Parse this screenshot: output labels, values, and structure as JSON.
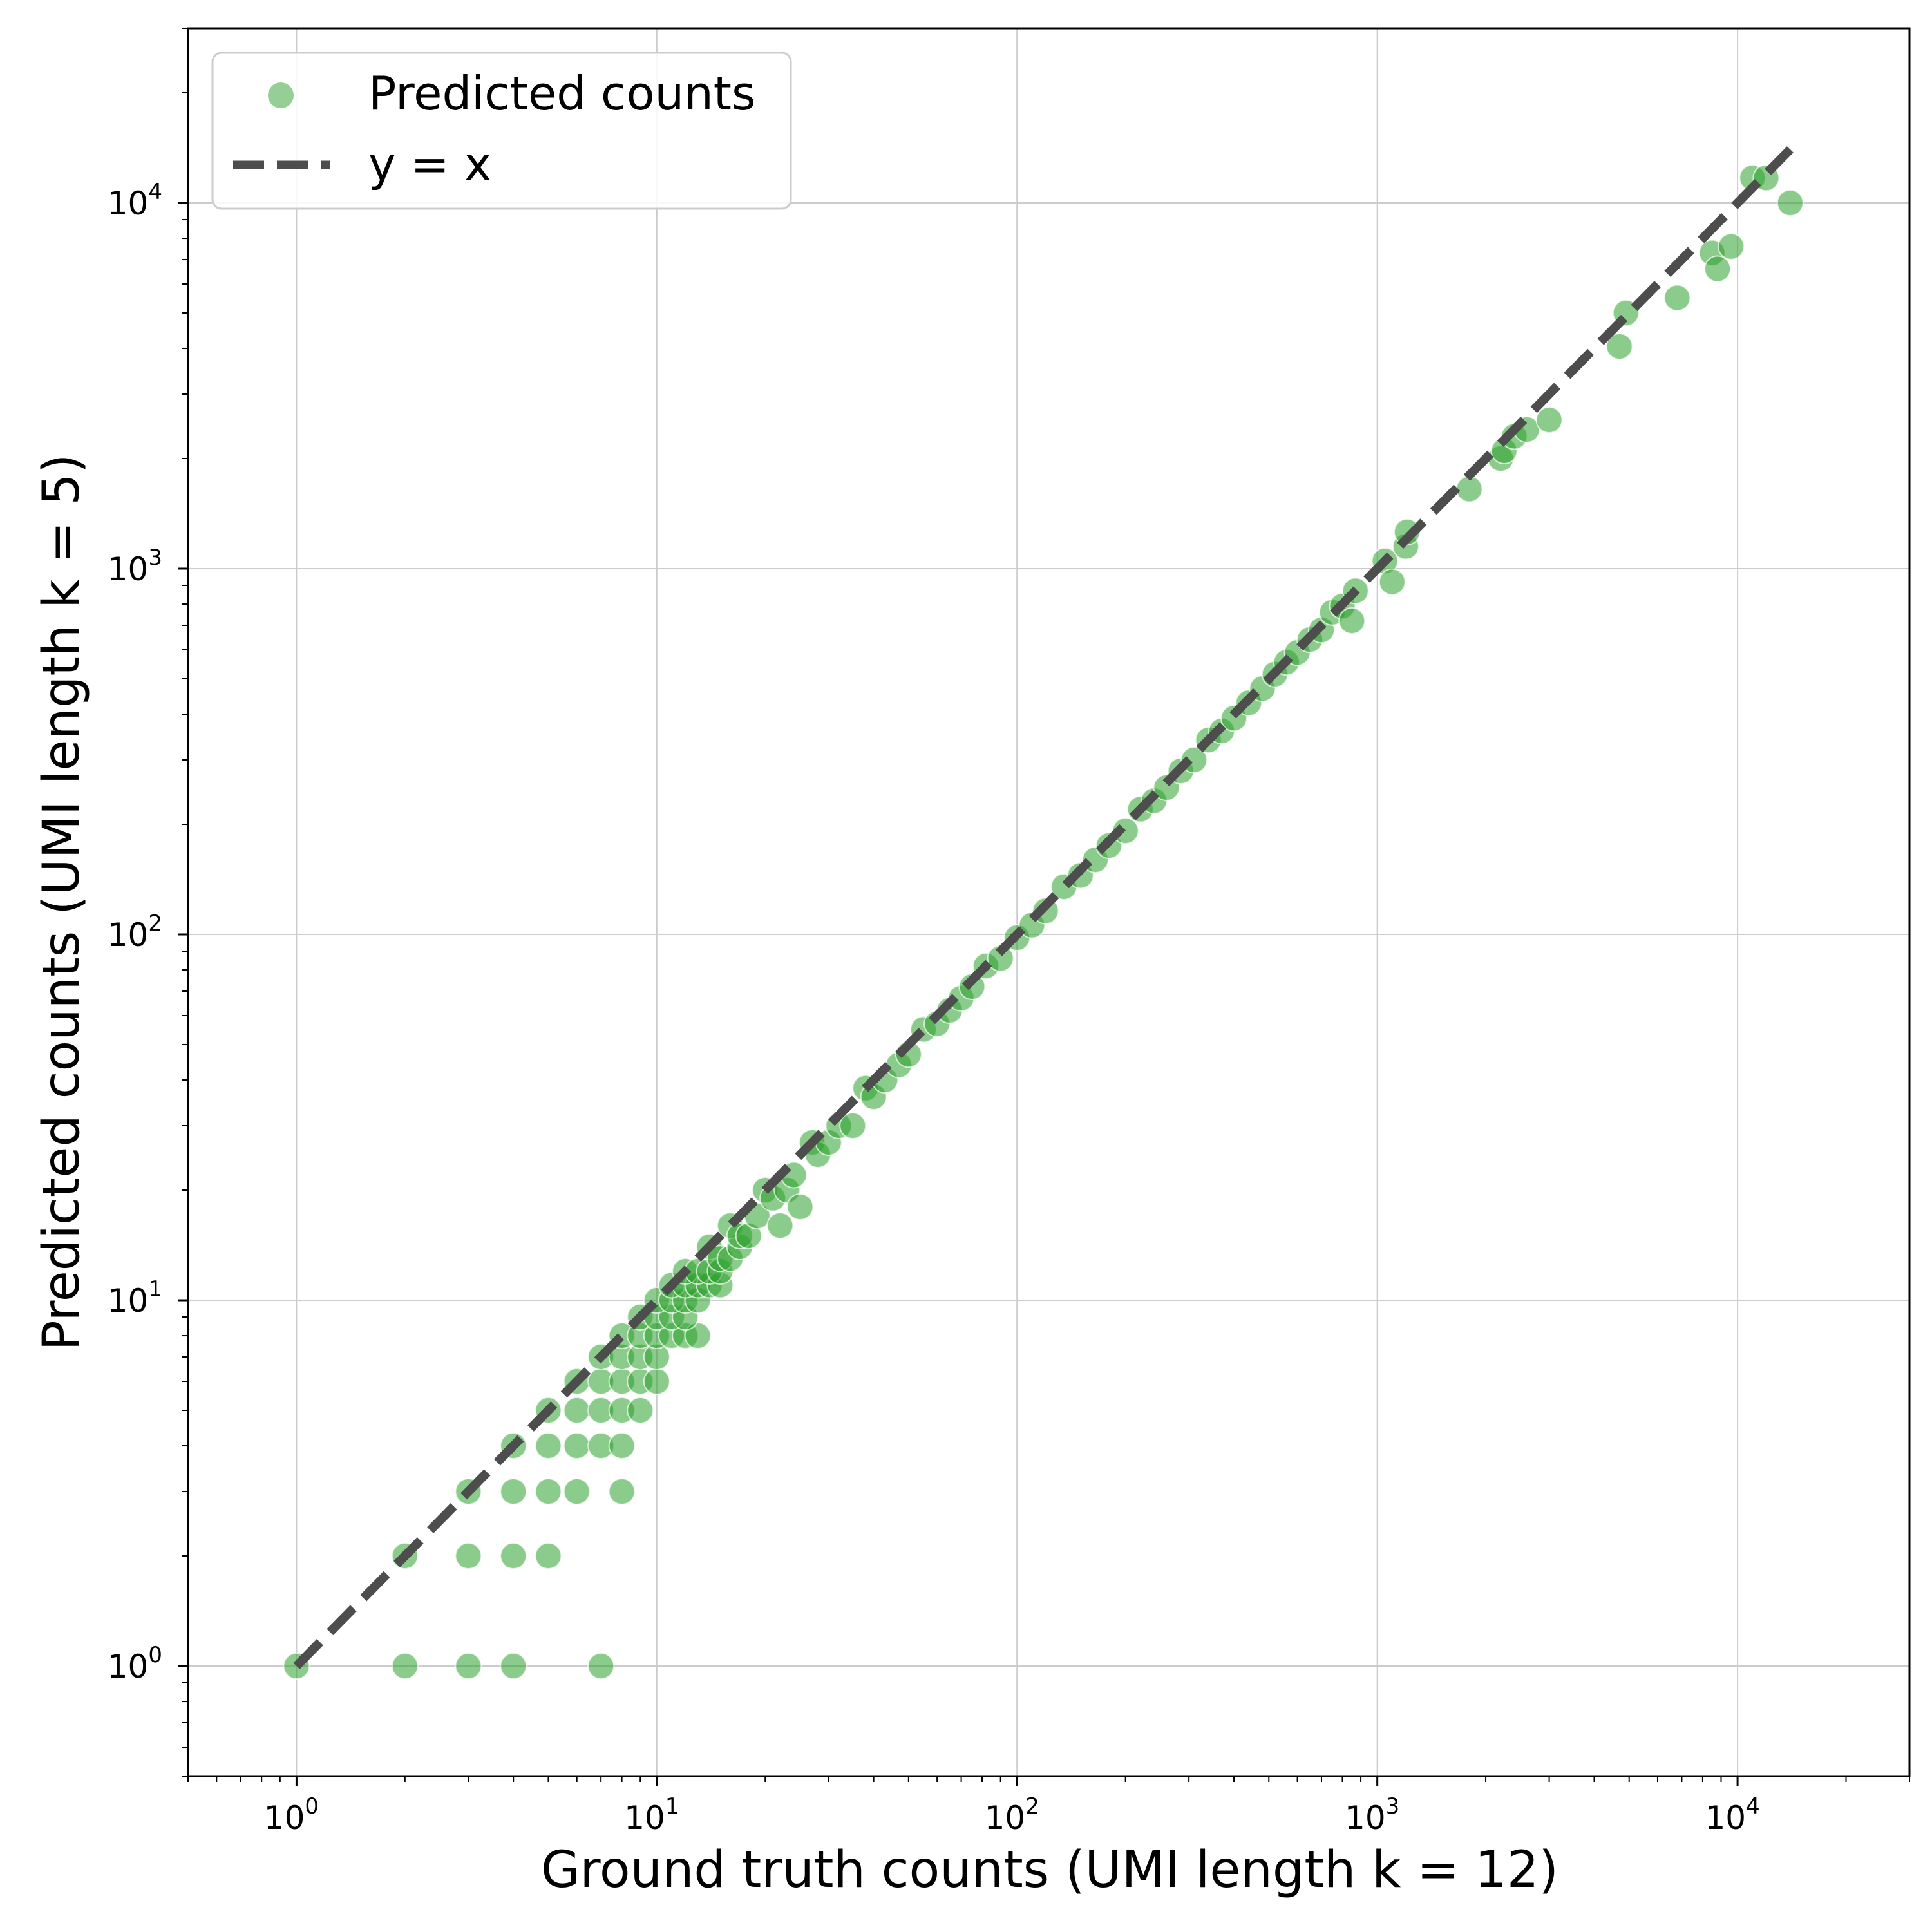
{
  "chart_data": {
    "type": "scatter",
    "xlabel": "Ground truth counts (UMI length k = 12)",
    "ylabel": "Predicted counts (UMI length k = 5)",
    "xscale": "log",
    "yscale": "log",
    "xlim": [
      0.5,
      30000
    ],
    "ylim": [
      0.5,
      30000
    ],
    "x_ticks": [
      "10^0",
      "10^1",
      "10^2",
      "10^3",
      "10^4"
    ],
    "y_ticks": [
      "10^0",
      "10^1",
      "10^2",
      "10^3",
      "10^4"
    ],
    "grid": true,
    "legend_placement": "top-left",
    "legend": [
      {
        "label": "Predicted counts",
        "marker": "circle"
      },
      {
        "label": "y = x",
        "marker": "dashed-line"
      }
    ],
    "colors": {
      "points": "#2ca02c",
      "reference_line": "#4d4d4d",
      "grid": "#cccccc"
    },
    "series": [
      {
        "name": "Predicted counts",
        "points": [
          [
            1,
            1
          ],
          [
            2,
            1
          ],
          [
            3,
            1
          ],
          [
            4,
            1
          ],
          [
            7,
            1
          ],
          [
            2,
            2
          ],
          [
            3,
            2
          ],
          [
            4,
            2
          ],
          [
            5,
            2
          ],
          [
            3,
            3
          ],
          [
            4,
            3
          ],
          [
            5,
            3
          ],
          [
            6,
            3
          ],
          [
            8,
            3
          ],
          [
            4,
            4
          ],
          [
            5,
            4
          ],
          [
            6,
            4
          ],
          [
            7,
            4
          ],
          [
            8,
            4
          ],
          [
            5,
            5
          ],
          [
            6,
            5
          ],
          [
            7,
            5
          ],
          [
            8,
            5
          ],
          [
            9,
            5
          ],
          [
            6,
            6
          ],
          [
            7,
            6
          ],
          [
            8,
            6
          ],
          [
            9,
            6
          ],
          [
            10,
            6
          ],
          [
            7,
            7
          ],
          [
            8,
            7
          ],
          [
            9,
            7
          ],
          [
            10,
            7
          ],
          [
            8,
            8
          ],
          [
            9,
            8
          ],
          [
            10,
            8
          ],
          [
            11,
            8
          ],
          [
            12,
            8
          ],
          [
            13,
            8
          ],
          [
            9,
            9
          ],
          [
            10,
            9
          ],
          [
            11,
            9
          ],
          [
            12,
            9
          ],
          [
            10,
            10
          ],
          [
            11,
            10
          ],
          [
            12,
            10
          ],
          [
            13,
            10
          ],
          [
            11,
            11
          ],
          [
            12,
            11
          ],
          [
            13,
            11
          ],
          [
            14,
            11
          ],
          [
            15,
            11
          ],
          [
            12,
            12
          ],
          [
            13,
            12
          ],
          [
            14,
            12
          ],
          [
            15,
            12
          ],
          [
            14,
            14
          ],
          [
            15,
            13
          ],
          [
            16,
            13
          ],
          [
            17,
            14
          ],
          [
            16,
            16
          ],
          [
            17,
            15
          ],
          [
            18,
            15
          ],
          [
            19,
            17
          ],
          [
            22,
            16
          ],
          [
            20,
            20
          ],
          [
            21,
            19
          ],
          [
            23,
            20
          ],
          [
            24,
            22
          ],
          [
            25,
            18
          ],
          [
            27,
            27
          ],
          [
            28,
            25
          ],
          [
            30,
            27
          ],
          [
            32,
            30
          ],
          [
            35,
            30
          ],
          [
            38,
            38
          ],
          [
            40,
            36
          ],
          [
            43,
            40
          ],
          [
            47,
            44
          ],
          [
            50,
            47
          ],
          [
            55,
            55
          ],
          [
            60,
            57
          ],
          [
            65,
            62
          ],
          [
            70,
            67
          ],
          [
            75,
            72
          ],
          [
            82,
            82
          ],
          [
            90,
            86
          ],
          [
            100,
            98
          ],
          [
            110,
            106
          ],
          [
            120,
            116
          ],
          [
            135,
            135
          ],
          [
            150,
            145
          ],
          [
            165,
            160
          ],
          [
            180,
            175
          ],
          [
            200,
            192
          ],
          [
            220,
            220
          ],
          [
            240,
            232
          ],
          [
            260,
            252
          ],
          [
            285,
            280
          ],
          [
            310,
            300
          ],
          [
            340,
            340
          ],
          [
            370,
            360
          ],
          [
            400,
            390
          ],
          [
            440,
            430
          ],
          [
            480,
            470
          ],
          [
            520,
            515
          ],
          [
            560,
            555
          ],
          [
            600,
            590
          ],
          [
            650,
            640
          ],
          [
            700,
            680
          ],
          [
            750,
            760
          ],
          [
            800,
            790
          ],
          [
            850,
            720
          ],
          [
            870,
            870
          ],
          [
            1050,
            1050
          ],
          [
            1100,
            920
          ],
          [
            1200,
            1150
          ],
          [
            1210,
            1260
          ],
          [
            1800,
            1650
          ],
          [
            2200,
            2000
          ],
          [
            2250,
            2100
          ],
          [
            2400,
            2300
          ],
          [
            2600,
            2400
          ],
          [
            3000,
            2550
          ],
          [
            4700,
            4050
          ],
          [
            4900,
            5000
          ],
          [
            6800,
            5500
          ],
          [
            8500,
            7300
          ],
          [
            8800,
            6600
          ],
          [
            9600,
            7600
          ],
          [
            11000,
            11700
          ],
          [
            12000,
            11700
          ],
          [
            14000,
            10000
          ]
        ]
      },
      {
        "name": "y = x",
        "x": [
          1,
          14000
        ],
        "y": [
          1,
          14000
        ]
      }
    ]
  }
}
